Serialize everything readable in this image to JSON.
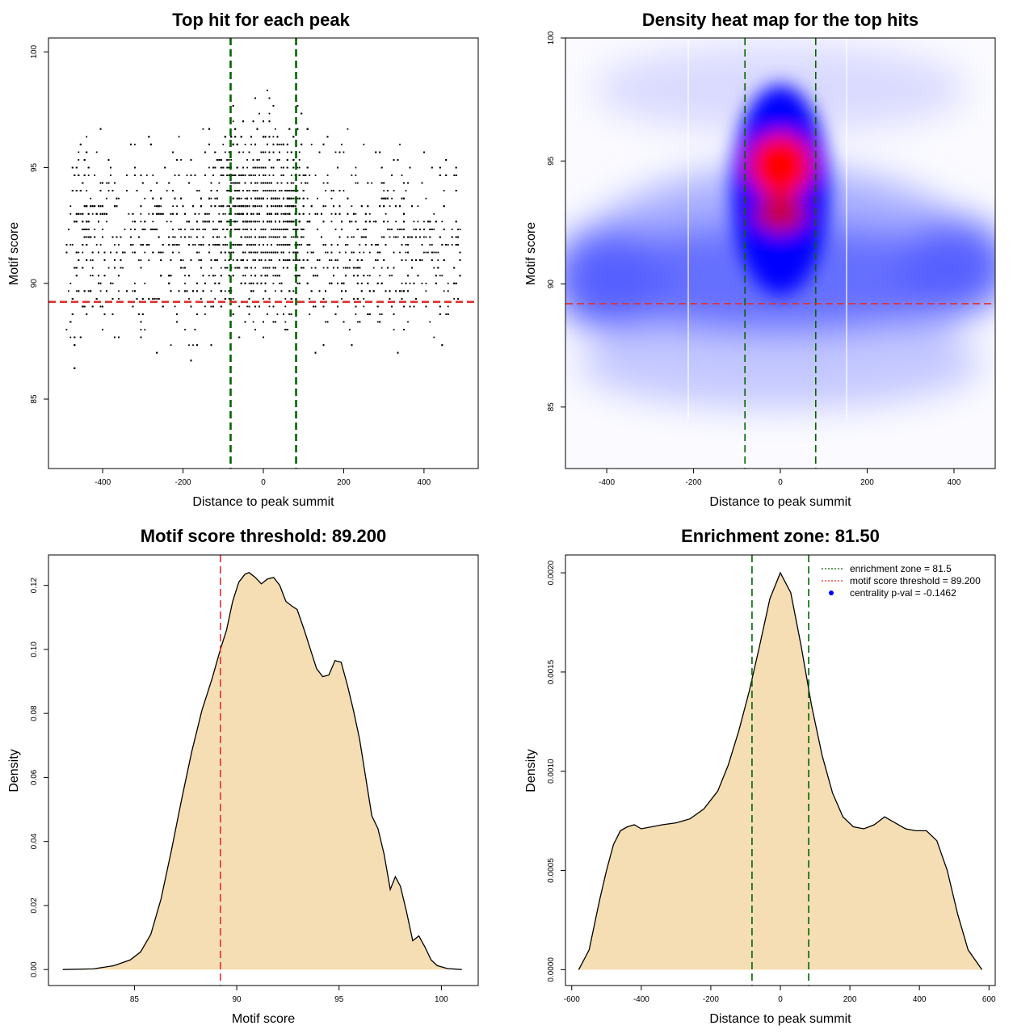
{
  "chart_data": [
    {
      "type": "scatter",
      "title": "Top hit for each peak",
      "xlabel": "Distance to peak summit",
      "ylabel": "Motif score",
      "xlim": [
        -535,
        535
      ],
      "ylim": [
        82,
        100.6
      ],
      "xticks": [
        -400,
        -200,
        0,
        200,
        400
      ],
      "yticks": [
        85,
        90,
        95,
        100
      ],
      "x_tick_labels": [
        "-400",
        "-200",
        "0",
        "200",
        "400"
      ],
      "y_tick_labels": [
        "85",
        "90",
        "95",
        "100"
      ],
      "point_color": "#000000",
      "x_range_of_points": [
        -490,
        495
      ],
      "notes_points": "thousands of top-hit points, densest near x=0 and scores 89-97",
      "vlines": [
        {
          "x": -81.5,
          "color": "#006400",
          "style": "dashed"
        },
        {
          "x": 81.5,
          "color": "#006400",
          "style": "dashed"
        }
      ],
      "hlines": [
        {
          "y": 89.2,
          "color": "#e03030",
          "style": "dashed"
        }
      ],
      "grid": false
    },
    {
      "type": "heatmap",
      "title": "Density heat map for the top hits",
      "xlabel": "Distance to peak summit",
      "ylabel": "Motif score",
      "xlim": [
        -495,
        495
      ],
      "ylim": [
        82.5,
        100
      ],
      "xticks": [
        -400,
        -200,
        0,
        200,
        400
      ],
      "yticks": [
        85,
        90,
        95,
        100
      ],
      "x_tick_labels": [
        "-400",
        "-200",
        "0",
        "200",
        "400"
      ],
      "y_tick_labels": [
        "85",
        "90",
        "95",
        "100"
      ],
      "colors": {
        "low": "#ffffff",
        "mid": "#0000ff",
        "high": "#ff0000"
      },
      "hotspots": [
        {
          "x": 0,
          "y": 94.9,
          "level": "max"
        },
        {
          "x": 0,
          "y": 92.9,
          "level": "high"
        }
      ],
      "vlines": [
        {
          "x": -81.5,
          "color": "#006400",
          "style": "dashed"
        },
        {
          "x": 81.5,
          "color": "#006400",
          "style": "dashed"
        }
      ],
      "hlines": [
        {
          "y": 89.2,
          "color": "#e03030",
          "style": "dashed"
        }
      ],
      "grid": false
    },
    {
      "type": "area",
      "title": "Motif score threshold: 89.200",
      "xlabel": "Motif score",
      "ylabel": "Density",
      "xlim": [
        80.8,
        101.8
      ],
      "ylim": [
        -0.005,
        0.1295
      ],
      "xticks": [
        85,
        90,
        95,
        100
      ],
      "yticks": [
        0.0,
        0.02,
        0.04,
        0.06,
        0.08,
        0.1,
        0.12
      ],
      "x_tick_labels": [
        "85",
        "90",
        "95",
        "100"
      ],
      "y_tick_labels": [
        "0.00",
        "0.02",
        "0.04",
        "0.06",
        "0.08",
        "0.10",
        "0.12"
      ],
      "fill": "#f5deb3",
      "x": [
        81.5,
        83.0,
        84.0,
        84.8,
        85.3,
        85.8,
        86.3,
        86.8,
        87.3,
        87.8,
        88.3,
        88.8,
        89.2,
        89.5,
        89.8,
        90.1,
        90.4,
        90.6,
        90.9,
        91.2,
        91.5,
        91.8,
        92.1,
        92.4,
        92.7,
        92.95,
        93.3,
        93.6,
        93.9,
        94.2,
        94.5,
        94.8,
        95.1,
        95.4,
        95.7,
        96.0,
        96.3,
        96.6,
        96.9,
        97.2,
        97.5,
        97.75,
        98.0,
        98.3,
        98.6,
        98.9,
        99.2,
        99.5,
        99.8,
        100.3,
        101.0
      ],
      "y": [
        0.0,
        0.0002,
        0.0012,
        0.003,
        0.0055,
        0.011,
        0.022,
        0.037,
        0.053,
        0.068,
        0.081,
        0.091,
        0.1,
        0.106,
        0.115,
        0.121,
        0.1235,
        0.124,
        0.1225,
        0.1205,
        0.122,
        0.1225,
        0.12,
        0.115,
        0.1135,
        0.1125,
        0.106,
        0.1,
        0.094,
        0.0915,
        0.092,
        0.0965,
        0.096,
        0.089,
        0.081,
        0.072,
        0.06,
        0.048,
        0.044,
        0.036,
        0.025,
        0.029,
        0.026,
        0.018,
        0.009,
        0.0105,
        0.007,
        0.003,
        0.0012,
        0.0003,
        0.0
      ],
      "vlines": [
        {
          "x": 89.2,
          "color": "#e03030",
          "style": "dashed"
        }
      ],
      "grid": false
    },
    {
      "type": "area",
      "title": "Enrichment zone: 81.50",
      "xlabel": "Distance to peak summit",
      "ylabel": "Density",
      "xlim": [
        -618,
        618
      ],
      "ylim": [
        -8e-05,
        0.00209
      ],
      "xticks": [
        -600,
        -400,
        -200,
        0,
        200,
        400,
        600
      ],
      "yticks": [
        0.0,
        0.0005,
        0.001,
        0.0015,
        0.002
      ],
      "x_tick_labels": [
        "-600",
        "-400",
        "-200",
        "0",
        "200",
        "400",
        "600"
      ],
      "y_tick_labels": [
        "0.0000",
        "0.0005",
        "0.0010",
        "0.0015",
        "0.0020"
      ],
      "fill": "#f5deb3",
      "x": [
        -580,
        -550,
        -520,
        -500,
        -480,
        -460,
        -440,
        -420,
        -400,
        -370,
        -340,
        -300,
        -260,
        -220,
        -180,
        -150,
        -120,
        -90,
        -60,
        -30,
        0,
        30,
        60,
        90,
        120,
        150,
        180,
        210,
        240,
        270,
        300,
        330,
        360,
        390,
        420,
        450,
        480,
        510,
        540,
        580
      ],
      "y": [
        0.0,
        0.0001,
        0.00035,
        0.0005,
        0.00063,
        0.0007,
        0.00072,
        0.00073,
        0.00071,
        0.00072,
        0.00073,
        0.00074,
        0.00076,
        0.00081,
        0.0009,
        0.00103,
        0.0012,
        0.0014,
        0.00163,
        0.00187,
        0.002,
        0.0019,
        0.00163,
        0.00133,
        0.00108,
        0.00089,
        0.00077,
        0.00072,
        0.00071,
        0.00073,
        0.00077,
        0.00074,
        0.00071,
        0.0007,
        0.0007,
        0.00065,
        0.0005,
        0.00028,
        0.0001,
        0.0
      ],
      "vlines": [
        {
          "x": -81.5,
          "color": "#006400",
          "style": "dashed"
        },
        {
          "x": 81.5,
          "color": "#006400",
          "style": "dashed"
        }
      ],
      "legend": {
        "position": "top-right",
        "entries": [
          {
            "label": "enrichment zone = 81.5",
            "color": "#006400",
            "kind": "dotted-line"
          },
          {
            "label": "motif score threshold = 89.200",
            "color": "#e03030",
            "kind": "dotted-line"
          },
          {
            "label": "centrality p-val = -0.1462",
            "color": "#0000ff",
            "kind": "point"
          }
        ]
      },
      "grid": false
    }
  ]
}
